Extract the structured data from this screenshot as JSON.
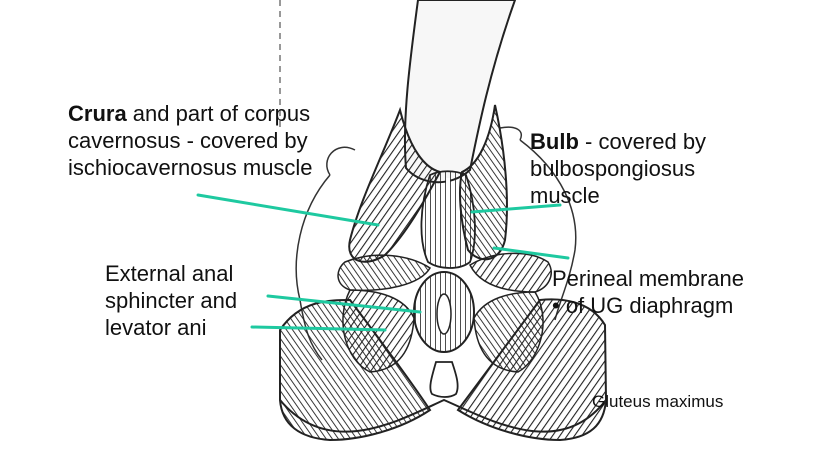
{
  "labels": {
    "crura": {
      "bold": "Crura",
      "rest": " and part of corpus",
      "line2": "cavernosus - covered by",
      "line3": "ischiocavernosus muscle"
    },
    "bulb": {
      "bold": "Bulb",
      "rest": " - covered by",
      "line2": "bulbospongiosus",
      "line3": "muscle"
    },
    "anal": {
      "line1": "External anal",
      "line2": "sphincter and",
      "line3": "levator ani"
    },
    "perineal": {
      "line1": "Perineal membrane",
      "line2": "• of UG diaphragm"
    },
    "gluteus": "Gluteus maximus"
  },
  "colors": {
    "pointer": "#1ec9a0",
    "ink": "#1a1a1a",
    "muscle_fill": "#f2f2f2"
  }
}
